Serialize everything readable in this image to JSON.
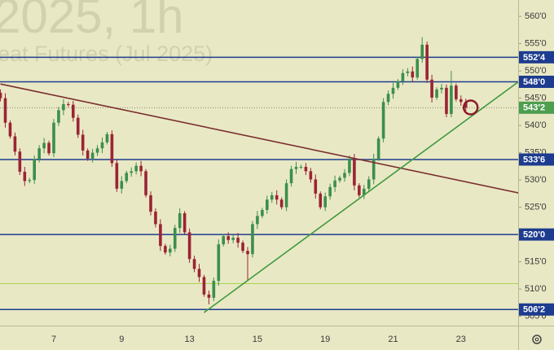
{
  "chart_data": {
    "type": "candlestick",
    "watermark": [
      "2025, 1h",
      "eat Futures (Jul 2025)"
    ],
    "categories": [
      null,
      null,
      null,
      null,
      null,
      null,
      null,
      null,
      null,
      null,
      null,
      "7",
      null,
      null,
      null,
      null,
      null,
      null,
      null,
      null,
      null,
      null,
      null,
      null,
      null,
      "9",
      null,
      null,
      null,
      null,
      null,
      null,
      null,
      null,
      null,
      null,
      null,
      null,
      null,
      "13",
      null,
      null,
      null,
      null,
      null,
      null,
      null,
      null,
      null,
      null,
      null,
      null,
      null,
      "15",
      null,
      null,
      null,
      null,
      null,
      null,
      null,
      null,
      null,
      null,
      null,
      null,
      null,
      "19",
      null,
      null,
      null,
      null,
      null,
      null,
      null,
      null,
      null,
      null,
      null,
      null,
      null,
      "21",
      null,
      null,
      null,
      null,
      null,
      null,
      null,
      null,
      null,
      null,
      null,
      null,
      null,
      "23",
      null
    ],
    "open": [
      546.0,
      545.0,
      540.5,
      538.0,
      535.2,
      531.5,
      529.8,
      530.0,
      533.8,
      535.8,
      536.8,
      534.9,
      540.5,
      542.8,
      543.9,
      543.8,
      541.4,
      538.3,
      535.4,
      533.9,
      535.0,
      535.8,
      536.9,
      538.4,
      533.1,
      528.4,
      529.8,
      531.3,
      531.6,
      532.6,
      531.6,
      527.2,
      524.2,
      521.9,
      517.9,
      516.7,
      517.4,
      521.2,
      523.9,
      520.4,
      515.5,
      513.7,
      512.2,
      509.0,
      508.4,
      511.5,
      518.2,
      519.7,
      519.0,
      519.4,
      518.5,
      517.0,
      516.4,
      521.9,
      523.4,
      524.5,
      526.4,
      527.2,
      526.4,
      525.0,
      529.4,
      532.0,
      532.4,
      532.4,
      531.6,
      530.1,
      527.5,
      525.0,
      527.0,
      528.7,
      529.9,
      530.4,
      531.3,
      533.9,
      529.0,
      527.2,
      528.4,
      530.1,
      533.9,
      537.6,
      544.3,
      545.8,
      546.9,
      548.1,
      549.6,
      549.9,
      548.8,
      552.2,
      554.8,
      548.4,
      545.1,
      546.6,
      546.9,
      542.1,
      547.3,
      544.8,
      544.3
    ],
    "high": [
      546.6,
      545.9,
      540.9,
      538.7,
      535.8,
      532.4,
      530.4,
      534.5,
      536.4,
      537.7,
      537.2,
      541.2,
      543.4,
      544.8,
      544.3,
      544.5,
      542.0,
      539.2,
      535.8,
      535.7,
      536.4,
      537.8,
      538.8,
      539.1,
      533.7,
      530.7,
      531.7,
      532.3,
      533.2,
      533.5,
      532.0,
      527.9,
      524.8,
      522.8,
      518.3,
      518.1,
      521.8,
      524.8,
      524.3,
      521.1,
      516.1,
      514.6,
      512.6,
      509.7,
      512.1,
      519.1,
      520.1,
      520.4,
      520.0,
      520.3,
      518.9,
      517.7,
      522.5,
      524.3,
      524.9,
      527.1,
      527.8,
      528.1,
      526.8,
      530.1,
      532.6,
      533.3,
      532.8,
      533.1,
      532.2,
      531.0,
      527.9,
      527.7,
      529.3,
      530.8,
      530.8,
      532.0,
      534.5,
      534.8,
      529.4,
      529.1,
      530.7,
      534.8,
      538.0,
      545.0,
      546.4,
      547.8,
      548.5,
      550.3,
      550.5,
      550.8,
      552.6,
      556.2,
      555.4,
      549.3,
      547.0,
      547.6,
      547.5,
      550.0,
      547.7,
      545.5,
      544.9
    ],
    "low": [
      544.4,
      539.6,
      537.6,
      534.5,
      530.9,
      528.9,
      529.4,
      529.3,
      533.2,
      534.9,
      534.5,
      534.2,
      539.9,
      541.9,
      543.4,
      540.7,
      537.7,
      534.5,
      533.5,
      533.2,
      534.4,
      534.9,
      536.5,
      532.4,
      527.8,
      527.5,
      529.4,
      530.6,
      531.0,
      530.7,
      526.8,
      523.5,
      521.3,
      517.0,
      516.3,
      516.0,
      516.8,
      520.3,
      520.0,
      514.8,
      513.1,
      511.3,
      508.6,
      507.2,
      507.8,
      510.6,
      517.8,
      518.3,
      518.4,
      517.6,
      516.6,
      511.6,
      515.8,
      521.0,
      523.0,
      523.8,
      525.8,
      525.5,
      524.6,
      524.3,
      528.8,
      531.1,
      532.0,
      530.9,
      529.5,
      526.6,
      524.6,
      524.3,
      526.4,
      527.8,
      529.5,
      529.7,
      530.7,
      528.1,
      526.8,
      526.5,
      527.8,
      529.2,
      533.5,
      536.9,
      543.7,
      544.9,
      546.5,
      547.4,
      549.0,
      547.9,
      548.4,
      551.5,
      547.8,
      544.2,
      544.7,
      545.9,
      541.5,
      541.5,
      544.4,
      543.6,
      542.7
    ],
    "close": [
      545.0,
      540.5,
      538.0,
      535.2,
      531.5,
      529.8,
      530.0,
      533.8,
      535.8,
      536.8,
      534.9,
      540.5,
      542.8,
      543.9,
      543.8,
      541.4,
      538.3,
      535.4,
      533.9,
      535.0,
      535.8,
      536.9,
      538.4,
      533.1,
      528.4,
      529.8,
      531.3,
      531.6,
      532.6,
      531.6,
      527.2,
      524.2,
      521.9,
      517.9,
      516.7,
      517.4,
      521.2,
      523.9,
      520.4,
      515.5,
      513.7,
      512.2,
      509.0,
      508.4,
      511.5,
      518.2,
      519.7,
      519.0,
      519.4,
      518.5,
      517.0,
      516.4,
      521.9,
      523.4,
      524.5,
      526.4,
      527.2,
      526.4,
      525.0,
      529.4,
      532.0,
      532.4,
      532.4,
      531.6,
      530.1,
      527.5,
      525.0,
      527.0,
      528.7,
      529.9,
      530.4,
      531.3,
      533.9,
      529.0,
      527.2,
      528.4,
      530.1,
      533.9,
      537.6,
      544.3,
      545.8,
      546.9,
      548.1,
      549.6,
      549.9,
      548.8,
      552.2,
      554.8,
      548.4,
      545.1,
      546.6,
      546.9,
      542.1,
      547.3,
      544.8,
      544.3,
      543.25
    ],
    "up_color": "#3b8f4c",
    "down_color": "#9a2434",
    "ylim": [
      503.3,
      563.0
    ],
    "yticks": [
      {
        "value": 505,
        "label": "505'0"
      },
      {
        "value": 510,
        "label": "510'0"
      },
      {
        "value": 515,
        "label": "515'0"
      },
      {
        "value": 520,
        "label": "520'0"
      },
      {
        "value": 525,
        "label": "525'0"
      },
      {
        "value": 530,
        "label": "530'0"
      },
      {
        "value": 535,
        "label": "535'0"
      },
      {
        "value": 540,
        "label": "540'0"
      },
      {
        "value": 545,
        "label": "545'0"
      },
      {
        "value": 550,
        "label": "550'0"
      },
      {
        "value": 555,
        "label": "555'0"
      },
      {
        "value": 560,
        "label": "560'0"
      }
    ],
    "levels": [
      {
        "value": 552.5,
        "label": "552'4"
      },
      {
        "value": 548,
        "label": "548'0"
      },
      {
        "value": 533.75,
        "label": "533'6"
      },
      {
        "value": 520,
        "label": "520'0"
      },
      {
        "value": 506.25,
        "label": "506'2"
      }
    ],
    "level_color": "#1d3c8f",
    "last_price": {
      "value": 543.25,
      "label": "543'2",
      "color": "#4d9e4f"
    },
    "support_line": {
      "value": 511,
      "color": "#a5d24a"
    },
    "trendlines": [
      {
        "from": [
          0,
          547.6
        ],
        "to": [
          107,
          527.6
        ],
        "color": "#7a2f2f"
      },
      {
        "from": [
          42,
          505.7
        ],
        "to": [
          107,
          548.1
        ],
        "color": "#3f9a3f"
      }
    ],
    "marker": {
      "x": 97,
      "value": 543.3,
      "color": "#8b1a2b"
    }
  }
}
